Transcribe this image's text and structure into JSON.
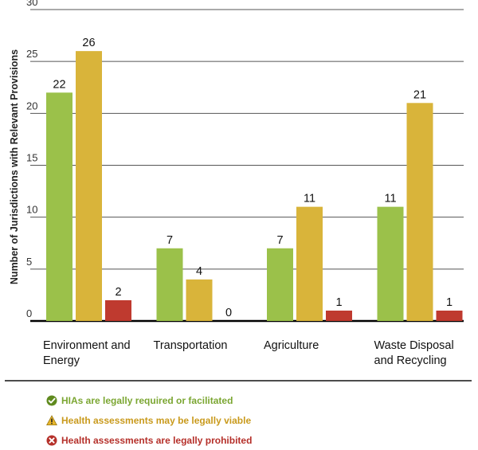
{
  "chart_data": {
    "type": "bar",
    "ylabel": "Number of Jurisdictions with Relevant Provisions",
    "xlabel": "",
    "ylim": [
      0,
      30
    ],
    "yticks": [
      0,
      5,
      10,
      15,
      20,
      25,
      30
    ],
    "categories": [
      [
        "Environment and",
        "Energy"
      ],
      [
        "Transportation"
      ],
      [
        "Agriculture"
      ],
      [
        "Waste Disposal",
        "and Recycling"
      ]
    ],
    "series": [
      {
        "name": "HIAs are legally required or facilitated",
        "color": "#9bc14a",
        "values": [
          22,
          7,
          7,
          11
        ]
      },
      {
        "name": "Health assessments may be legally viable",
        "color": "#d9b43a",
        "values": [
          26,
          4,
          11,
          21
        ]
      },
      {
        "name": "Health assessments are legally prohibited",
        "color": "#bf3a2f",
        "values": [
          2,
          0,
          1,
          1
        ]
      }
    ],
    "legend_position": "bottom"
  },
  "legend": {
    "items": [
      {
        "label": "HIAs are legally required or facilitated",
        "color": "#7ba632",
        "icon": "check-circle-icon"
      },
      {
        "label": "Health assessments may be legally viable",
        "color": "#c99a1c",
        "icon": "warning-triangle-icon"
      },
      {
        "label": "Health assessments are legally prohibited",
        "color": "#b5302a",
        "icon": "x-circle-icon"
      }
    ]
  }
}
